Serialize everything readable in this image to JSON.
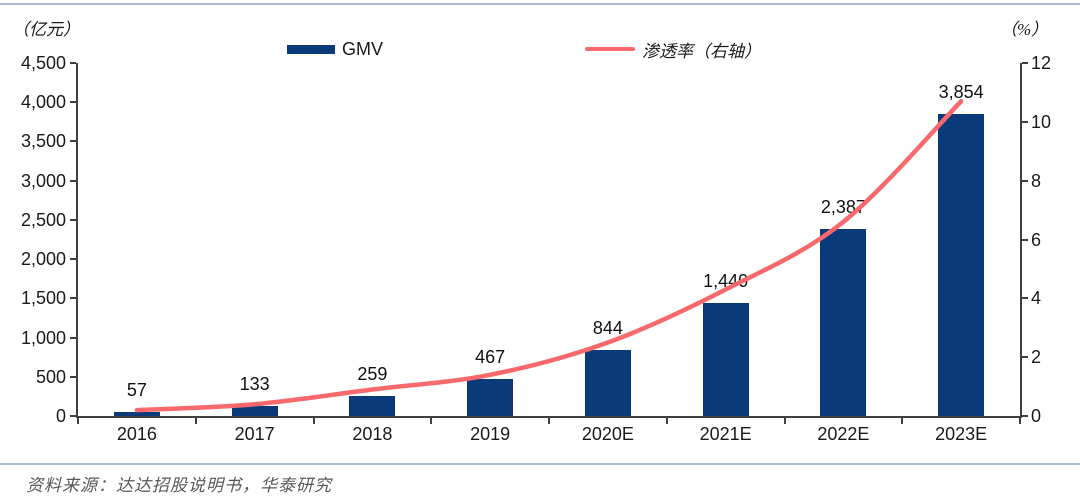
{
  "header": {
    "left_unit": "（亿元）",
    "right_unit": "（%）"
  },
  "legend": [
    {
      "label": "GMV",
      "type": "bar"
    },
    {
      "label": "渗透率（右轴）",
      "type": "line"
    }
  ],
  "chart_data": {
    "type": "combo",
    "categories": [
      "2016",
      "2017",
      "2018",
      "2019",
      "2020E",
      "2021E",
      "2022E",
      "2023E"
    ],
    "series": [
      {
        "name": "GMV",
        "type": "bar",
        "axis": "left",
        "unit": "亿元",
        "values": [
          57,
          133,
          259,
          467,
          844,
          1440,
          2387,
          3854
        ],
        "data_labels": [
          "57",
          "133",
          "259",
          "467",
          "844",
          "1,440",
          "2,387",
          "3,854"
        ],
        "color": "#0B3A7A"
      },
      {
        "name": "渗透率（右轴）",
        "type": "line",
        "axis": "right",
        "unit": "%",
        "values": [
          0.2,
          0.4,
          0.9,
          1.4,
          2.5,
          4.3,
          6.6,
          10.7
        ],
        "color": "#F7696C"
      }
    ],
    "left_axis": {
      "title": "（亿元）",
      "min": 0,
      "max": 4500,
      "step": 500,
      "tick_labels": [
        "0",
        "500",
        "1,000",
        "1,500",
        "2,000",
        "2,500",
        "3,000",
        "3,500",
        "4,000",
        "4,500"
      ]
    },
    "right_axis": {
      "title": "（%）",
      "min": 0,
      "max": 12,
      "step": 2,
      "tick_labels": [
        "0",
        "2",
        "4",
        "6",
        "8",
        "10",
        "12"
      ]
    },
    "legend_position": "top",
    "grid": false
  },
  "footer": {
    "source": "资料来源：达达招股说明书，华泰研究"
  },
  "colors": {
    "bar": "#0B3A7A",
    "line": "#F7696C",
    "rule": "#AEBCD4",
    "axis": "#3F3F3F",
    "source_text": "#595959"
  }
}
